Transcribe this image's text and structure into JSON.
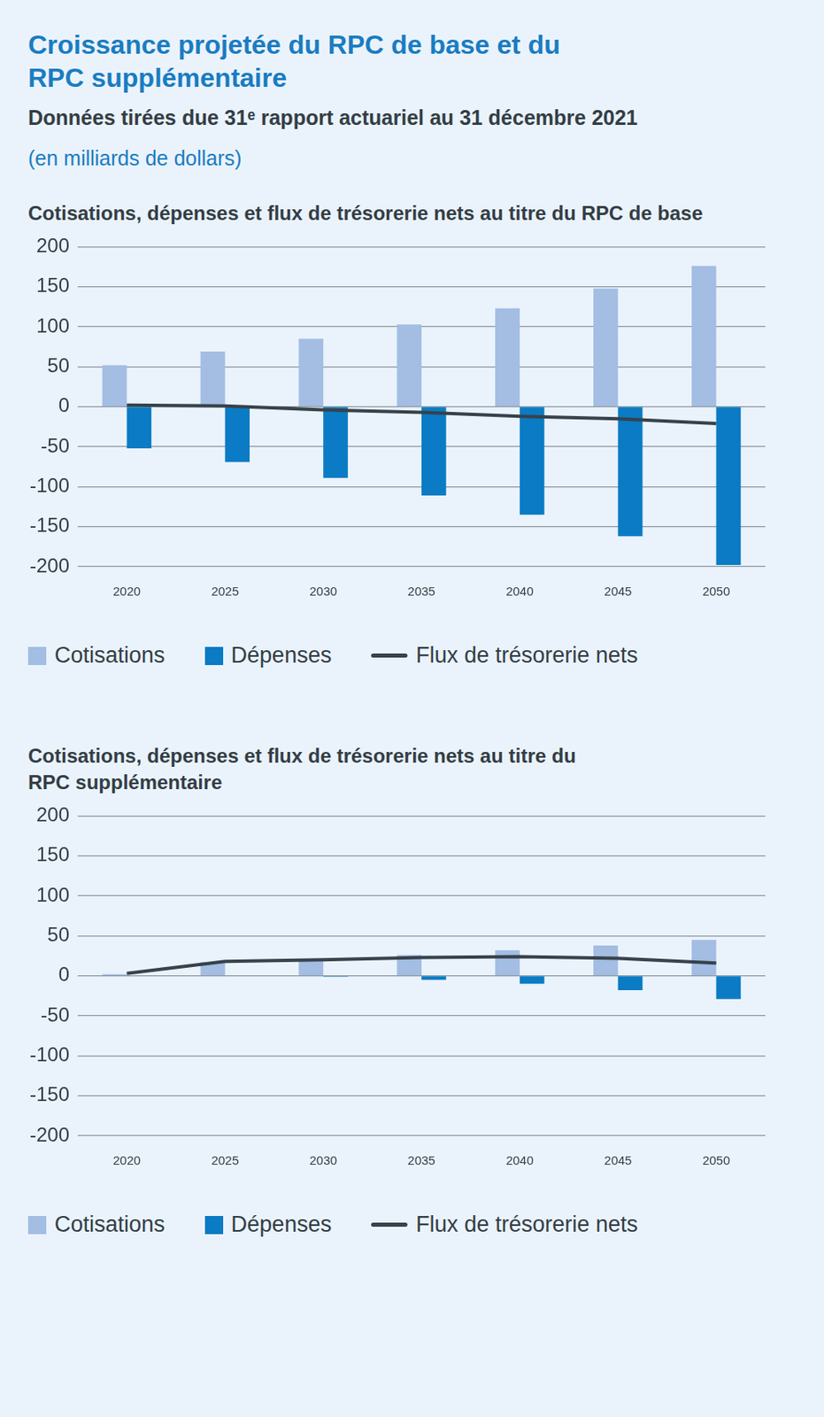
{
  "title": "Croissance projetée du RPC de base et du\nRPC supplémentaire",
  "subtitle": "Données tirées due 31ᵉ rapport actuariel au 31 décembre 2021",
  "units": "(en milliards de dollars)",
  "chart_data": [
    {
      "type": "bar",
      "title": "Cotisations, dépenses et flux de trésorerie nets au titre du RPC de base",
      "categories": [
        "2020",
        "2025",
        "2030",
        "2035",
        "2040",
        "2045",
        "2050"
      ],
      "series": [
        {
          "name": "Cotisations",
          "color": "#a3bde3",
          "values": [
            52,
            69,
            85,
            103,
            123,
            148,
            176
          ]
        },
        {
          "name": "Dépenses",
          "color": "#0a7bc4",
          "values": [
            -52,
            -69,
            -89,
            -111,
            -135,
            -162,
            -198
          ]
        },
        {
          "name": "Flux de trésorerie nets",
          "type": "line",
          "color": "#37424a",
          "values": [
            2,
            1,
            -4,
            -7,
            -12,
            -15,
            -21
          ]
        }
      ],
      "ylim": [
        -200,
        200
      ],
      "yticks": [
        -200,
        -150,
        -100,
        -50,
        0,
        50,
        100,
        150,
        200
      ],
      "grid": true,
      "legend": "bottom"
    },
    {
      "type": "bar",
      "title": "Cotisations, dépenses et flux de trésorerie nets au titre du\nRPC supplémentaire",
      "categories": [
        "2020",
        "2025",
        "2030",
        "2035",
        "2040",
        "2045",
        "2050"
      ],
      "series": [
        {
          "name": "Cotisations",
          "color": "#a3bde3",
          "values": [
            2,
            17,
            21,
            26,
            32,
            38,
            45
          ]
        },
        {
          "name": "Dépenses",
          "color": "#0a7bc4",
          "values": [
            0,
            0,
            -1,
            -5,
            -10,
            -18,
            -29
          ]
        },
        {
          "name": "Flux de trésorerie nets",
          "type": "line",
          "color": "#37424a",
          "values": [
            3,
            18,
            20,
            23,
            24,
            22,
            16
          ]
        }
      ],
      "ylim": [
        -200,
        200
      ],
      "yticks": [
        -200,
        -150,
        -100,
        -50,
        0,
        50,
        100,
        150,
        200
      ],
      "grid": true,
      "legend": "bottom"
    }
  ]
}
